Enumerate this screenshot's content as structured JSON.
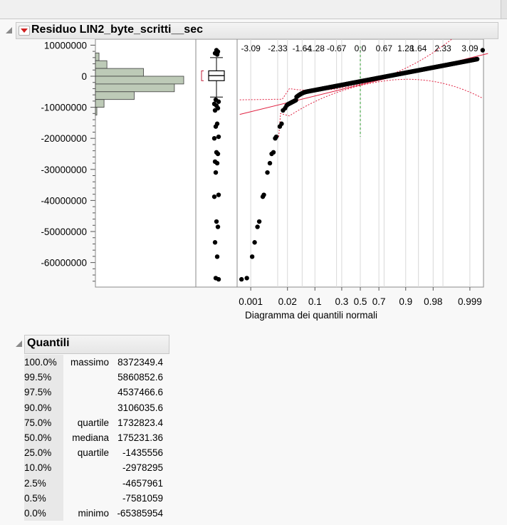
{
  "report": {
    "title": "Residuo LIN2_byte_scritti__sec"
  },
  "chart_data": {
    "type": "histogram-boxplot-normal-quantile",
    "ylim": [
      -66000000,
      11000000
    ],
    "y_ticks": [
      {
        "v": 10000000,
        "label": "10000000"
      },
      {
        "v": 0,
        "label": "0"
      },
      {
        "v": -10000000,
        "label": "-10000000"
      },
      {
        "v": -20000000,
        "label": "-20000000"
      },
      {
        "v": -30000000,
        "label": "-30000000"
      },
      {
        "v": -40000000,
        "label": "-40000000"
      },
      {
        "v": -50000000,
        "label": "-50000000"
      },
      {
        "v": -60000000,
        "label": "-60000000"
      }
    ],
    "histogram": {
      "bins": [
        {
          "low": 5000000,
          "high": 7500000,
          "count": 5
        },
        {
          "low": 2500000,
          "high": 5000000,
          "count": 16
        },
        {
          "low": 0,
          "high": 2500000,
          "count": 67
        },
        {
          "low": -2500000,
          "high": 0,
          "count": 123
        },
        {
          "low": -5000000,
          "high": -2500000,
          "count": 110
        },
        {
          "low": -7500000,
          "high": -5000000,
          "count": 54
        },
        {
          "low": -10000000,
          "high": -7500000,
          "count": 12
        },
        {
          "low": -12500000,
          "high": -10000000,
          "count": 2
        }
      ]
    },
    "box": {
      "min": -65385954,
      "q1": -1435556,
      "median": 175231.36,
      "q3": 1732823.4,
      "max": 8372349.4,
      "whisker_low": -6700000,
      "whisker_high": 6000000
    },
    "outliers": [
      8372349.4,
      7900000,
      7400000,
      7000000,
      -7581059,
      -8200000,
      -8900000,
      -9500000,
      -10300000,
      -11000000,
      -15300000,
      -16200000,
      -19500000,
      -20000000,
      -24500000,
      -25000000,
      -27500000,
      -28000000,
      -31000000,
      -38200000,
      -38800000,
      -46800000,
      -48500000,
      -53500000,
      -58100000,
      -65000000,
      -65385954
    ],
    "quantile_plot": {
      "xlabel": "Diagramma dei quantili normali",
      "z_ticks": [
        {
          "z": -3.09,
          "label": "-3.09"
        },
        {
          "z": -2.33,
          "label": "-2.33"
        },
        {
          "z": -1.64,
          "label": "-1.64"
        },
        {
          "z": -1.28,
          "label": "-1.28"
        },
        {
          "z": -0.67,
          "label": "-0.67"
        },
        {
          "z": 0,
          "label": "0.0"
        },
        {
          "z": 0.67,
          "label": "0.67"
        },
        {
          "z": 1.28,
          "label": "1.28"
        },
        {
          "z": 1.64,
          "label": "1.64"
        },
        {
          "z": 2.33,
          "label": "2.33"
        },
        {
          "z": 3.09,
          "label": "3.09"
        }
      ],
      "p_ticks": [
        {
          "z": -3.09,
          "label": "0.001"
        },
        {
          "z": -2.054,
          "label": "0.02"
        },
        {
          "z": -1.28,
          "label": "0.1"
        },
        {
          "z": -0.524,
          "label": "0.3"
        },
        {
          "z": 0,
          "label": "0.5"
        },
        {
          "z": 0.524,
          "label": "0.7"
        },
        {
          "z": 1.28,
          "label": "0.9"
        },
        {
          "z": 2.054,
          "label": "0.98"
        },
        {
          "z": 3.09,
          "label": "0.999"
        }
      ],
      "grid_z": [
        -3.09,
        -2.33,
        -1.64,
        -1.28,
        -0.67,
        0,
        0.67,
        1.28,
        1.64,
        2.33,
        3.09,
        -2.054,
        -0.524,
        0.524,
        2.054
      ],
      "fit_line": {
        "z": [
          -3.4,
          3.6
        ],
        "y": [
          -12300000,
          7300000
        ]
      },
      "tail_points": [
        {
          "z": -3.35,
          "y": -65385954
        },
        {
          "z": -3.2,
          "y": -65000000
        },
        {
          "z": -3.05,
          "y": -58100000
        },
        {
          "z": -2.98,
          "y": -53500000
        },
        {
          "z": -2.9,
          "y": -48500000
        },
        {
          "z": -2.85,
          "y": -46800000
        },
        {
          "z": -2.75,
          "y": -38800000
        },
        {
          "z": -2.72,
          "y": -38200000
        },
        {
          "z": -2.62,
          "y": -31000000
        },
        {
          "z": -2.55,
          "y": -28000000
        },
        {
          "z": -2.5,
          "y": -25000000
        },
        {
          "z": -2.45,
          "y": -24500000
        },
        {
          "z": -2.4,
          "y": -20000000
        },
        {
          "z": -2.37,
          "y": -19500000
        },
        {
          "z": -2.27,
          "y": -16200000
        },
        {
          "z": -2.22,
          "y": -15300000
        },
        {
          "z": -2.18,
          "y": -11000000
        },
        {
          "z": -2.12,
          "y": -10300000
        },
        {
          "z": -2.08,
          "y": -9500000
        },
        {
          "z": 3.45,
          "y": 8372349.4
        }
      ]
    }
  },
  "quantiles": {
    "title": "Quantili",
    "rows": [
      {
        "pct": "100.0%",
        "label": "massimo",
        "value": "8372349.4"
      },
      {
        "pct": "99.5%",
        "label": "",
        "value": "5860852.6"
      },
      {
        "pct": "97.5%",
        "label": "",
        "value": "4537466.6"
      },
      {
        "pct": "90.0%",
        "label": "",
        "value": "3106035.6"
      },
      {
        "pct": "75.0%",
        "label": "quartile",
        "value": "1732823.4"
      },
      {
        "pct": "50.0%",
        "label": "mediana",
        "value": "175231.36"
      },
      {
        "pct": "25.0%",
        "label": "quartile",
        "value": "-1435556"
      },
      {
        "pct": "10.0%",
        "label": "",
        "value": "-2978295"
      },
      {
        "pct": "2.5%",
        "label": "",
        "value": "-4657961"
      },
      {
        "pct": "0.5%",
        "label": "",
        "value": "-7581059"
      },
      {
        "pct": "0.0%",
        "label": "minimo",
        "value": "-65385954"
      }
    ]
  }
}
